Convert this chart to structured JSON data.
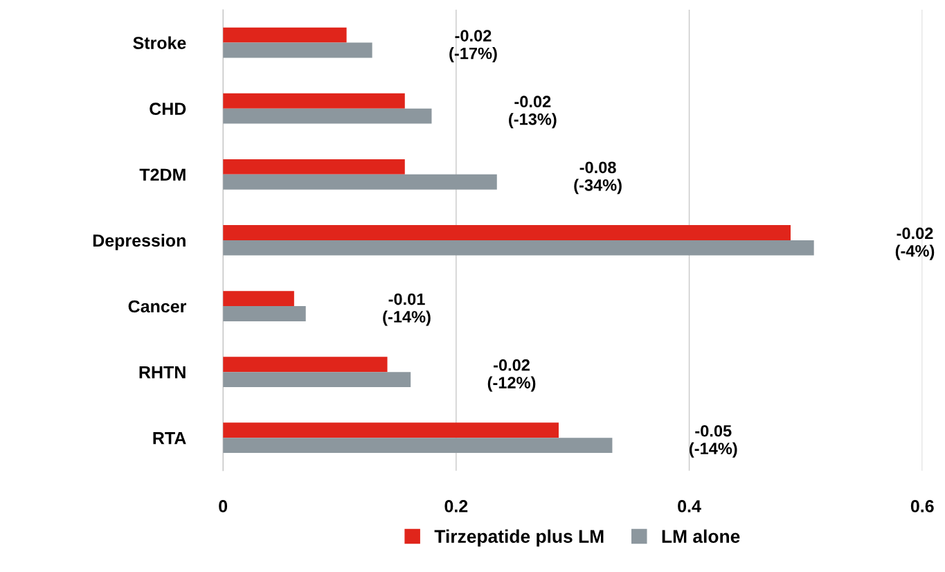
{
  "chart_data": {
    "type": "bar",
    "orientation": "horizontal",
    "categories": [
      "Stroke",
      "CHD",
      "T2DM",
      "Depression",
      "Cancer",
      "RHTN",
      "RTA"
    ],
    "series": [
      {
        "name": "Tirzepatide plus LM",
        "color": "#e0251b",
        "values": [
          0.106,
          0.156,
          0.156,
          0.487,
          0.061,
          0.141,
          0.288
        ]
      },
      {
        "name": "LM alone",
        "color": "#8c979e",
        "values": [
          0.128,
          0.179,
          0.235,
          0.507,
          0.071,
          0.161,
          0.334
        ]
      }
    ],
    "xlim": [
      0,
      0.6
    ],
    "xticks": [
      0,
      0.2,
      0.4,
      0.6
    ],
    "grid": "x",
    "legend": "bottom",
    "annotations": [
      "-0.02\n(-17%)",
      "-0.02\n(-13%)",
      "-0.08\n(-34%)",
      "-0.02\n(-4%)",
      "-0.01\n(-14%)",
      "-0.02\n(-12%)",
      "-0.05\n(-14%)"
    ]
  }
}
